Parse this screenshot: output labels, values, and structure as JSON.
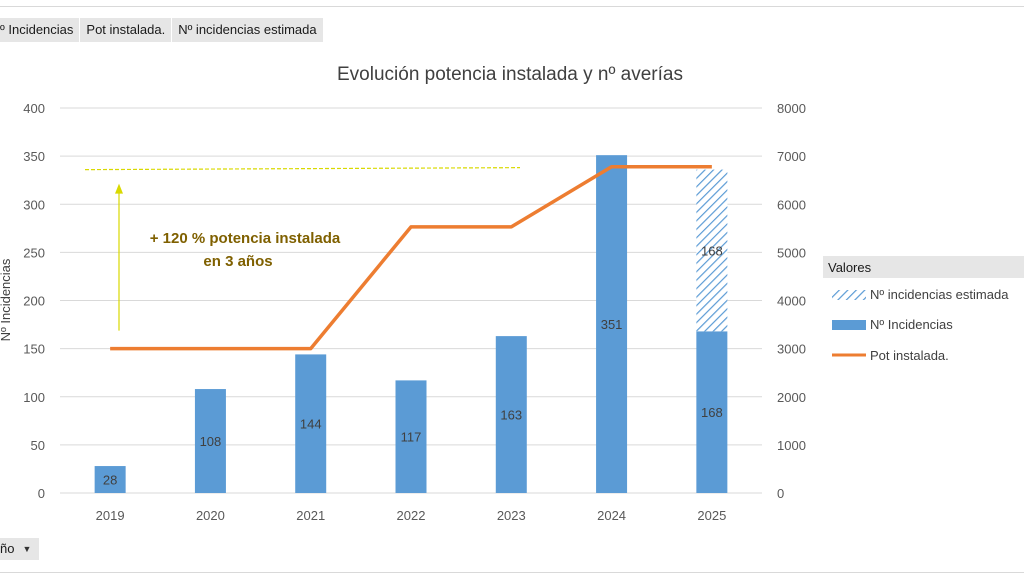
{
  "field_buttons": [
    "º Incidencias",
    "Pot instalada.",
    "Nº incidencias estimada"
  ],
  "year_filter": {
    "label": "ño",
    "arrow": "▼"
  },
  "chart_data": {
    "type": "bar",
    "title": "Evolución potencia instalada y nº averías",
    "ylabel": "Nº Incidencias",
    "categories": [
      "2019",
      "2020",
      "2021",
      "2022",
      "2023",
      "2024",
      "2025"
    ],
    "y_left": {
      "min": 0,
      "max": 400,
      "ticks": [
        "0",
        "50",
        "100",
        "150",
        "200",
        "250",
        "300",
        "350",
        "400"
      ]
    },
    "y_right": {
      "min": 0,
      "max": 8000,
      "ticks": [
        "0",
        "1000",
        "2000",
        "3000",
        "4000",
        "5000",
        "6000",
        "7000",
        "8000"
      ]
    },
    "series": [
      {
        "name": "Nº Incidencias",
        "kind": "bar",
        "axis": "left",
        "color": "#5b9bd5",
        "values": [
          28,
          108,
          144,
          117,
          163,
          351,
          168
        ],
        "labels": [
          "28",
          "108",
          "144",
          "117",
          "163",
          "351",
          "168"
        ]
      },
      {
        "name": "Nº incidencias estimada",
        "kind": "bar-hatched",
        "axis": "left",
        "color": "#5b9bd5",
        "values": [
          null,
          null,
          null,
          null,
          null,
          null,
          168
        ],
        "labels": [
          "",
          "",
          "",
          "",
          "",
          "",
          "168"
        ]
      },
      {
        "name": "Pot instalada.",
        "kind": "line",
        "axis": "right",
        "color": "#ed7d31",
        "values": [
          3000,
          3000,
          3000,
          5530,
          5530,
          6780,
          6780
        ]
      }
    ],
    "annotation": {
      "text_line1": "+ 120 % potencia instalada",
      "text_line2": "en 3 años",
      "color": "#7f6000",
      "guide_color": "#d9d900",
      "arrow_from": 150,
      "arrow_to": 337
    },
    "legend": {
      "title": "Valores",
      "placement": "right"
    },
    "grid": true
  }
}
